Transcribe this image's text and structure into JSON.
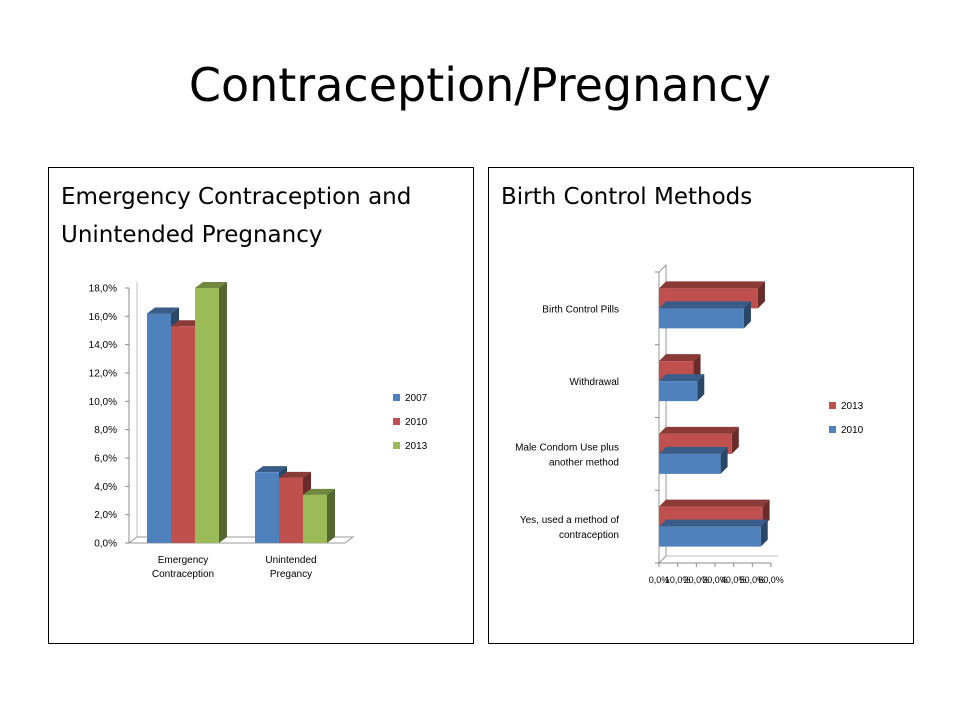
{
  "slide": {
    "title": "Contraception/Pregnancy"
  },
  "panels": [
    {
      "title": "Emergency Contraception and Unintended Pregnancy"
    },
    {
      "title": "Birth Control Methods"
    }
  ],
  "colors": {
    "s2007": "#4f81bd",
    "s2010": "#c0504d",
    "s2013": "#9bbb59"
  },
  "chart_data": [
    {
      "type": "bar",
      "orientation": "vertical",
      "style": "3d-clustered",
      "categories": [
        "Emergency Contraception",
        "Unintended Pregancy"
      ],
      "category_lines": [
        [
          "Emergency",
          "Contraception"
        ],
        [
          "Unintended",
          "Pregancy"
        ]
      ],
      "series": [
        {
          "name": "2007",
          "color": "#4f81bd",
          "values": [
            16.2,
            5.0
          ]
        },
        {
          "name": "2010",
          "color": "#c0504d",
          "values": [
            15.3,
            4.6
          ]
        },
        {
          "name": "2013",
          "color": "#9bbb59",
          "values": [
            18.0,
            3.4
          ]
        }
      ],
      "ylim": [
        0,
        18
      ],
      "yticks": [
        0,
        2,
        4,
        6,
        8,
        10,
        12,
        14,
        16,
        18
      ],
      "ytick_labels": [
        "0,0%",
        "2,0%",
        "4,0%",
        "6,0%",
        "8,0%",
        "10,0%",
        "12,0%",
        "14,0%",
        "16,0%",
        "18,0%"
      ],
      "legend": "right",
      "grid": false
    },
    {
      "type": "bar",
      "orientation": "horizontal",
      "style": "3d-clustered",
      "categories": [
        "Birth Control Pills",
        "Withdrawal",
        "Male Condom Use plus another method",
        "Yes, used a method of contraception"
      ],
      "category_lines": [
        [
          "Birth Control Pills"
        ],
        [
          "Withdrawal"
        ],
        [
          "Male Condom Use plus",
          "another method"
        ],
        [
          "Yes, used a method of",
          "contraception"
        ]
      ],
      "series": [
        {
          "name": "2013",
          "color": "#c0504d",
          "values": [
            53.0,
            18.5,
            39.0,
            55.5
          ]
        },
        {
          "name": "2010",
          "color": "#4f81bd",
          "values": [
            45.5,
            20.5,
            33.0,
            54.5
          ]
        }
      ],
      "xlim": [
        0,
        60
      ],
      "xticks": [
        0,
        10,
        20,
        30,
        40,
        50,
        60
      ],
      "xtick_labels": [
        "0,0%",
        "10,0%",
        "20,0%",
        "30,0%",
        "40,0%",
        "50,0%",
        "60,0%"
      ],
      "legend": "right",
      "grid": false
    }
  ]
}
